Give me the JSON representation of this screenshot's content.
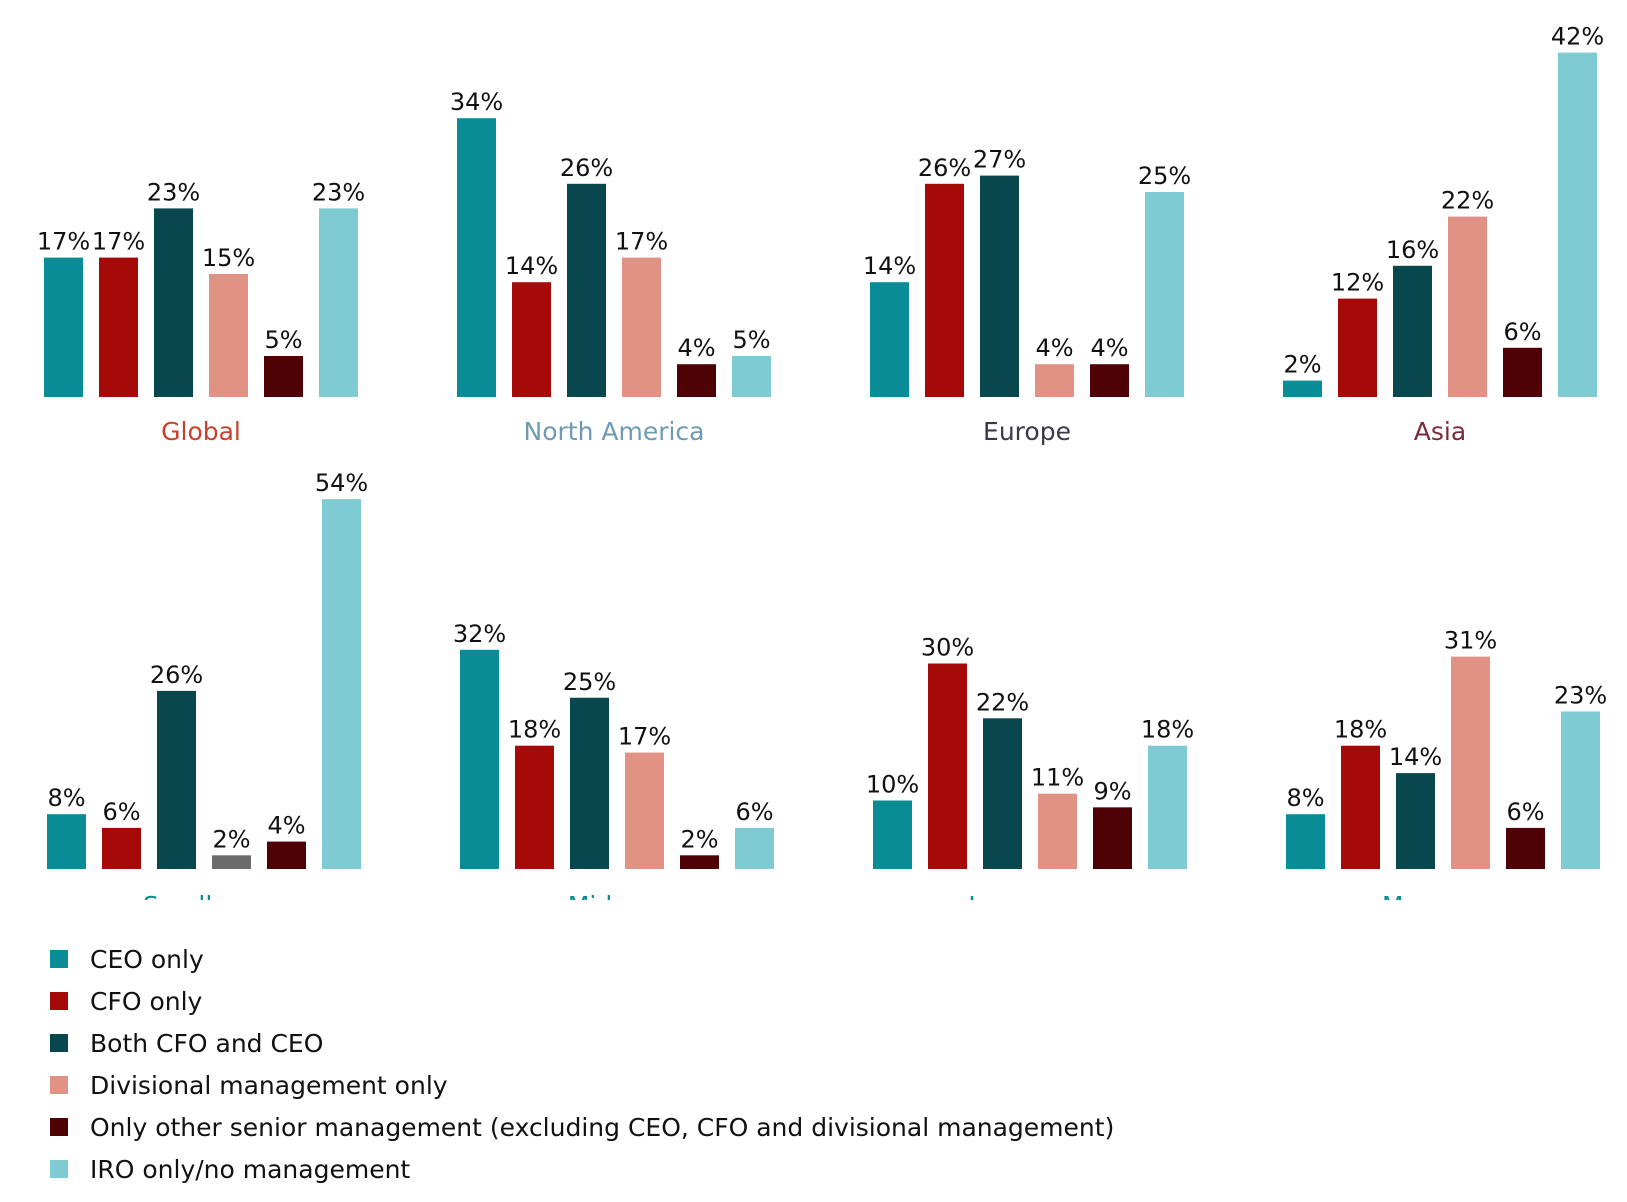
{
  "chart_data": {
    "type": "bar",
    "series": [
      {
        "name": "CEO only",
        "color": "#0a8c96"
      },
      {
        "name": "CFO only",
        "color": "#a50a08"
      },
      {
        "name": "Both CFO and CEO",
        "color": "#09474e"
      },
      {
        "name": "Divisional management only",
        "color": "#e09385"
      },
      {
        "name": "Only other senior management (excluding CEO, CFO and divisional management)",
        "color": "#4f0206"
      },
      {
        "name": "IRO only/no management",
        "color": "#7ecbd3"
      }
    ],
    "panels": [
      {
        "title": "Global",
        "title_color": "#c8412d",
        "values": [
          17,
          17,
          23,
          15,
          5,
          23
        ],
        "labels": [
          "17%",
          "17%",
          "23%",
          "15%",
          "5%",
          "23%"
        ]
      },
      {
        "title": "North America",
        "title_color": "#6f9ab6",
        "values": [
          34,
          14,
          26,
          17,
          4,
          5
        ],
        "labels": [
          "34%",
          "14%",
          "26%",
          "17%",
          "4%",
          "5%"
        ]
      },
      {
        "title": "Europe",
        "title_color": "#3a3a4a",
        "values": [
          14,
          26,
          27,
          4,
          4,
          25
        ],
        "labels": [
          "14%",
          "26%",
          "27%",
          "4%",
          "4%",
          "25%"
        ]
      },
      {
        "title": "Asia",
        "title_color": "#7a2b3a",
        "values": [
          2,
          12,
          16,
          22,
          6,
          42
        ],
        "labels": [
          "2%",
          "12%",
          "16%",
          "22%",
          "6%",
          "42%"
        ]
      },
      {
        "title": "Small cap",
        "title_color": "#0a8c96",
        "values": [
          8,
          6,
          26,
          2,
          4,
          54
        ],
        "labels": [
          "8%",
          "6%",
          "26%",
          "2%",
          "4%",
          "54%"
        ],
        "bar_colors": [
          null,
          null,
          null,
          "#6b6b6b",
          null,
          null
        ]
      },
      {
        "title": "Mid-cap",
        "title_color": "#0a8c96",
        "values": [
          32,
          18,
          25,
          17,
          2,
          6
        ],
        "labels": [
          "32%",
          "18%",
          "25%",
          "17%",
          "2%",
          "6%"
        ]
      },
      {
        "title": "Large cap",
        "title_color": "#0a8c96",
        "values": [
          10,
          30,
          22,
          11,
          9,
          18
        ],
        "labels": [
          "10%",
          "30%",
          "22%",
          "11%",
          "9%",
          "18%"
        ]
      },
      {
        "title": "Mega-cap",
        "title_color": "#0a8c96",
        "values": [
          8,
          18,
          14,
          31,
          6,
          23
        ],
        "labels": [
          "8%",
          "18%",
          "14%",
          "31%",
          "6%",
          "23%"
        ]
      }
    ]
  }
}
